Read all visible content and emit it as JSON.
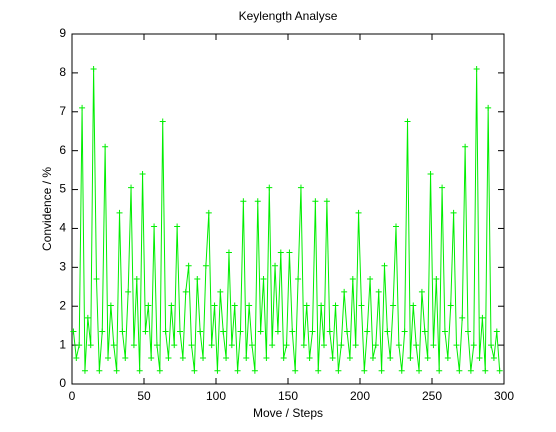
{
  "chart_data": {
    "type": "linespoints",
    "title": "Keylength Analyse",
    "xlabel": "Move / Steps",
    "ylabel": "Convidence / %",
    "xlim": [
      0,
      300
    ],
    "xticks": [
      0,
      50,
      100,
      150,
      200,
      250,
      300
    ],
    "ylim": [
      0,
      9
    ],
    "yticks": [
      0,
      1,
      2,
      3,
      4,
      5,
      6,
      7,
      8,
      9
    ],
    "grid": false,
    "series": [
      {
        "color": "#00ee00",
        "x": [
          1,
          3,
          5,
          7,
          9,
          11,
          13,
          15,
          17,
          19,
          21,
          23,
          25,
          27,
          29,
          31,
          33,
          35,
          37,
          39,
          41,
          43,
          45,
          47,
          49,
          51,
          53,
          55,
          57,
          59,
          61,
          63,
          65,
          67,
          69,
          71,
          73,
          75,
          77,
          79,
          81,
          83,
          85,
          87,
          89,
          91,
          93,
          95,
          97,
          99,
          101,
          103,
          105,
          107,
          109,
          111,
          113,
          115,
          117,
          119,
          121,
          123,
          125,
          127,
          129,
          131,
          133,
          135,
          137,
          139,
          141,
          143,
          145,
          147,
          149,
          151,
          153,
          155,
          157,
          159,
          161,
          163,
          165,
          167,
          169,
          171,
          173,
          175,
          177,
          179,
          181,
          183,
          185,
          187,
          189,
          191,
          193,
          195,
          197,
          199,
          201,
          203,
          205,
          207,
          209,
          211,
          213,
          215,
          217,
          219,
          221,
          223,
          225,
          227,
          229,
          231,
          233,
          235,
          237,
          239,
          241,
          243,
          245,
          247,
          249,
          251,
          253,
          255,
          257,
          259,
          261,
          263,
          265,
          267,
          269,
          271,
          273,
          275,
          277,
          279,
          281,
          283,
          285,
          287,
          289,
          291,
          293,
          295,
          297
        ],
        "values": [
          1.35,
          0.67,
          1.0,
          7.1,
          0.34,
          1.7,
          1.0,
          8.1,
          2.7,
          0.34,
          1.35,
          6.1,
          0.67,
          2.02,
          1.0,
          0.34,
          4.4,
          1.35,
          0.67,
          2.37,
          5.05,
          1.0,
          2.7,
          0.34,
          5.4,
          1.35,
          2.02,
          0.67,
          4.05,
          1.0,
          0.34,
          6.75,
          1.35,
          0.67,
          2.02,
          1.0,
          4.05,
          1.35,
          0.67,
          2.37,
          3.04,
          1.0,
          0.34,
          2.7,
          1.35,
          0.67,
          3.04,
          4.4,
          1.0,
          2.02,
          0.34,
          2.37,
          1.35,
          0.67,
          3.38,
          1.0,
          2.02,
          0.34,
          1.35,
          4.7,
          0.67,
          2.02,
          1.0,
          0.34,
          4.7,
          1.35,
          2.7,
          0.67,
          5.05,
          1.0,
          3.04,
          1.35,
          3.38,
          0.67,
          1.0,
          3.38,
          1.35,
          0.34,
          2.7,
          5.05,
          1.0,
          2.02,
          0.67,
          1.35,
          4.7,
          0.34,
          2.02,
          1.0,
          4.7,
          1.35,
          0.67,
          2.02,
          0.34,
          1.0,
          2.37,
          1.35,
          0.67,
          2.7,
          1.0,
          4.4,
          2.02,
          0.34,
          1.35,
          2.7,
          0.67,
          1.0,
          2.37,
          0.34,
          3.04,
          1.35,
          0.67,
          2.02,
          4.05,
          1.0,
          0.34,
          1.35,
          6.75,
          0.67,
          2.02,
          1.0,
          0.34,
          2.37,
          1.35,
          0.67,
          5.4,
          1.0,
          2.7,
          0.34,
          5.05,
          1.35,
          0.67,
          2.02,
          4.4,
          1.0,
          0.34,
          1.7,
          6.1,
          1.35,
          0.34,
          1.0,
          8.1,
          0.67,
          1.7,
          0.34,
          7.1,
          1.0,
          0.67,
          1.35,
          0.34
        ]
      }
    ]
  }
}
